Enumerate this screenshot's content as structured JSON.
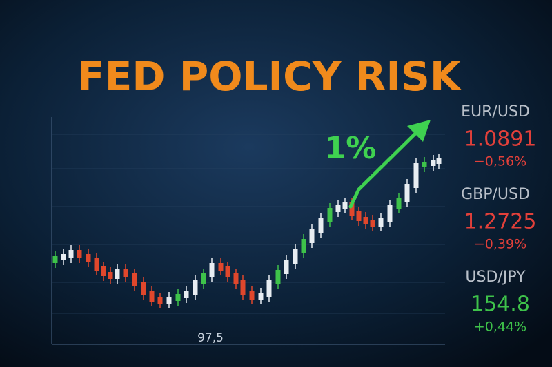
{
  "header": {
    "title": "FED POLICY RISK"
  },
  "chart": {
    "annotation": "1%",
    "axis_label": "97,5"
  },
  "quotes": [
    {
      "pair": "EUR/USD",
      "price": "1.0891",
      "change": "−0,56%",
      "color": "#e2403a"
    },
    {
      "pair": "GBP/USD",
      "price": "1.2725",
      "change": "−0,39%",
      "color": "#e2403a"
    },
    {
      "pair": "USD/JPY",
      "price": "154.8",
      "change": "+0,44%",
      "color": "#3ec24a"
    }
  ]
}
